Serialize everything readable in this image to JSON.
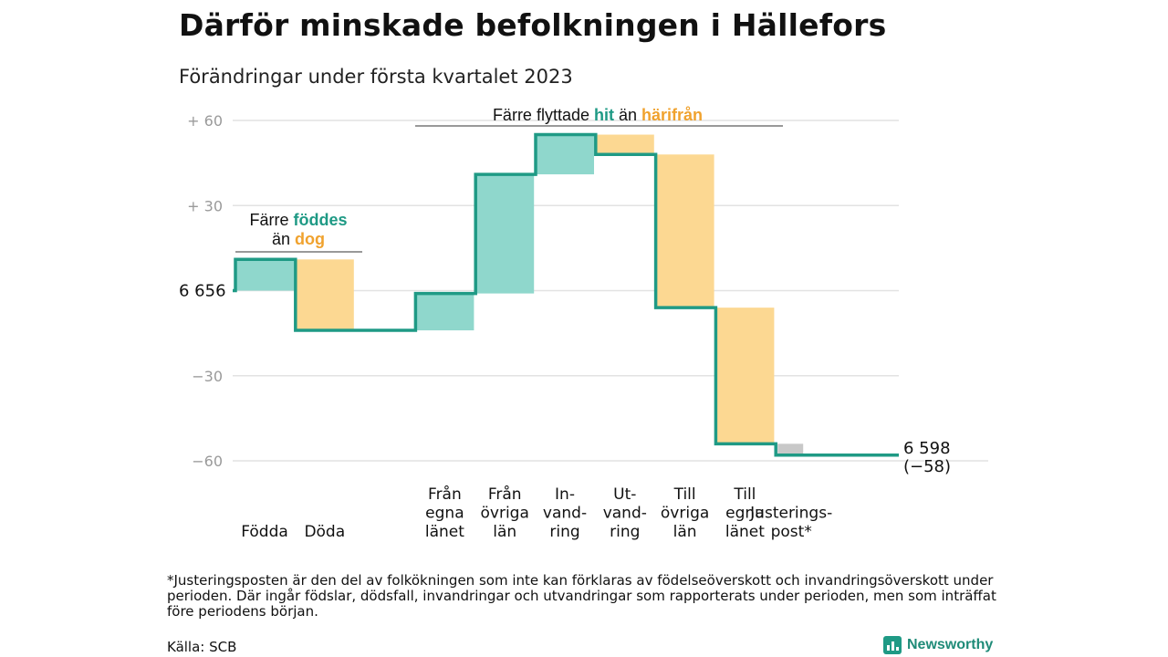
{
  "title": "Därför minskade befolkningen i Hällefors",
  "subtitle": "Förändringar under första kvartalet 2023",
  "footnote": "*Justeringsposten är den del av folkökningen som inte kan förklaras av födelseöverskott och invandringsöverskott under perioden. Där ingår födslar, dödsfall, invandringar och utvandringar som rapporterats under perioden, men som inträffat före periodens början.",
  "source": "Källa: SCB",
  "brand": "Newsworthy",
  "colors": {
    "increase": "#8fd7cc",
    "decrease": "#fcd892",
    "adjustment": "#c8c8c8",
    "line": "#1f9a85",
    "teal_text": "#1f9a85",
    "orange_text": "#f0a22e"
  },
  "chart_data": {
    "type": "waterfall",
    "start_label": "6 656",
    "end_label": [
      "6 598",
      "(−58)"
    ],
    "yticks": [
      {
        "value": 60,
        "label": "+ 60"
      },
      {
        "value": 30,
        "label": "+ 30"
      },
      {
        "value": 0,
        "label": ""
      },
      {
        "value": -30,
        "label": "−30"
      },
      {
        "value": -60,
        "label": "−60"
      }
    ],
    "ylim": [
      -65,
      62
    ],
    "steps": [
      {
        "label": [
          "Födda"
        ],
        "delta": 11,
        "kind": "increase"
      },
      {
        "label": [
          "Döda"
        ],
        "delta": -25,
        "kind": "decrease"
      },
      {
        "label": [],
        "delta": 0,
        "kind": "gap"
      },
      {
        "label": [
          "Från",
          "egna",
          "länet"
        ],
        "delta": 13,
        "kind": "increase"
      },
      {
        "label": [
          "Från",
          "övriga",
          "län"
        ],
        "delta": 42,
        "kind": "increase"
      },
      {
        "label": [
          "In-",
          "vand-",
          "ring"
        ],
        "delta": 14,
        "kind": "increase"
      },
      {
        "label": [
          "Ut-",
          "vand-",
          "ring"
        ],
        "delta": -7,
        "kind": "decrease"
      },
      {
        "label": [
          "Till",
          "övriga",
          "län"
        ],
        "delta": -54,
        "kind": "decrease"
      },
      {
        "label": [
          "Till",
          "egna",
          "länet"
        ],
        "delta": -48,
        "kind": "decrease"
      },
      {
        "label": [
          "Justerings-",
          "post*"
        ],
        "delta": -4,
        "kind": "adjustment"
      }
    ],
    "annotations": [
      {
        "parts": [
          [
            "Färre ",
            ""
          ],
          [
            "föddes",
            "teal"
          ]
        ],
        "parts2": [
          [
            "än ",
            ""
          ],
          [
            "dog",
            "orange"
          ]
        ],
        "from_step": 0,
        "to_step": 1
      },
      {
        "parts": [
          [
            "Färre flyttade ",
            ""
          ],
          [
            "hit",
            "teal"
          ],
          [
            " än ",
            ""
          ],
          [
            "härifrån",
            "orange"
          ]
        ],
        "from_step": 3,
        "to_step": 8
      }
    ]
  }
}
